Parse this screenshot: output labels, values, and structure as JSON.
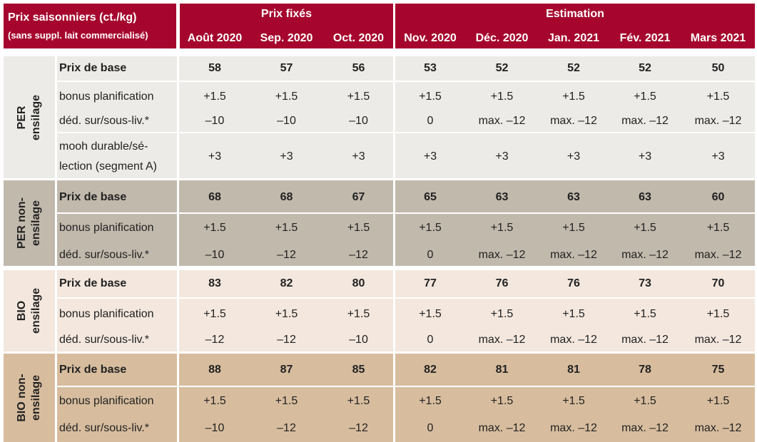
{
  "header": {
    "title_line1": "Prix saisonniers (ct./kg)",
    "title_line2": "(sans suppl. lait commercialisé)",
    "group_fixed": "Prix fixés",
    "group_estimate": "Estimation",
    "months": [
      "Août 2020",
      "Sep. 2020",
      "Oct. 2020",
      "Nov. 2020",
      "Déc. 2020",
      "Jan. 2021",
      "Fév. 2021",
      "Mars 2021"
    ]
  },
  "colors": {
    "header": "#a6062d",
    "per_ensilage": "#ecebe7",
    "per_non_ensilage": "#c1b9ac",
    "bio_ensilage": "#f3e7de",
    "bio_non_ensilage": "#d7bd9e"
  },
  "groups": [
    {
      "label_line1": "PER",
      "label_line2": "ensilage",
      "rows": [
        {
          "label": "Prix de base",
          "bold": true,
          "values": [
            "58",
            "57",
            "56",
            "53",
            "52",
            "52",
            "52",
            "50"
          ]
        },
        {
          "label": "bonus planification",
          "values": [
            "+1.5",
            "+1.5",
            "+1.5",
            "+1.5",
            "+1.5",
            "+1.5",
            "+1.5",
            "+1.5"
          ]
        },
        {
          "label": "déd. sur/sous-liv.*",
          "values": [
            "–10",
            "–10",
            "–10",
            "0",
            "max. –12",
            "max. –12",
            "max. –12",
            "max. –12"
          ]
        },
        {
          "label_line1": "mooh durable/sé-",
          "label_line2": "lection (segment A)",
          "values": [
            "+3",
            "+3",
            "+3",
            "+3",
            "+3",
            "+3",
            "+3",
            "+3"
          ]
        }
      ]
    },
    {
      "label_line1": "PER non-",
      "label_line2": "ensilage",
      "rows": [
        {
          "label": "Prix de base",
          "bold": true,
          "values": [
            "68",
            "68",
            "67",
            "65",
            "63",
            "63",
            "63",
            "60"
          ]
        },
        {
          "label": "bonus planification",
          "values": [
            "+1.5",
            "+1.5",
            "+1.5",
            "+1.5",
            "+1.5",
            "+1.5",
            "+1.5",
            "+1.5"
          ]
        },
        {
          "label": "déd. sur/sous-liv.*",
          "values": [
            "–10",
            "–12",
            "–12",
            "0",
            "max. –12",
            "max. –12",
            "max. –12",
            "max. –12"
          ]
        }
      ]
    },
    {
      "label_line1": "BIO",
      "label_line2": "ensilage",
      "rows": [
        {
          "label": "Prix de base",
          "bold": true,
          "values": [
            "83",
            "82",
            "80",
            "77",
            "76",
            "76",
            "73",
            "70"
          ]
        },
        {
          "label": "bonus planification",
          "values": [
            "+1.5",
            "+1.5",
            "+1.5",
            "+1.5",
            "+1.5",
            "+1.5",
            "+1.5",
            "+1.5"
          ]
        },
        {
          "label": "déd. sur/sous-liv.*",
          "values": [
            "–12",
            "–12",
            "–10",
            "0",
            "max. –12",
            "max. –12",
            "max. –12",
            "max. –12"
          ]
        }
      ]
    },
    {
      "label_line1": "BIO non-",
      "label_line2": "ensilage",
      "rows": [
        {
          "label": "Prix de base",
          "bold": true,
          "values": [
            "88",
            "87",
            "85",
            "82",
            "81",
            "81",
            "78",
            "75"
          ]
        },
        {
          "label": "bonus planification",
          "values": [
            "+1.5",
            "+1.5",
            "+1.5",
            "+1.5",
            "+1.5",
            "+1.5",
            "+1.5",
            "+1.5"
          ]
        },
        {
          "label": "déd. sur/sous-liv.*",
          "values": [
            "–10",
            "–12",
            "–12",
            "0",
            "max. –12",
            "max. –12",
            "max. –12",
            "max. –12"
          ]
        }
      ]
    }
  ]
}
